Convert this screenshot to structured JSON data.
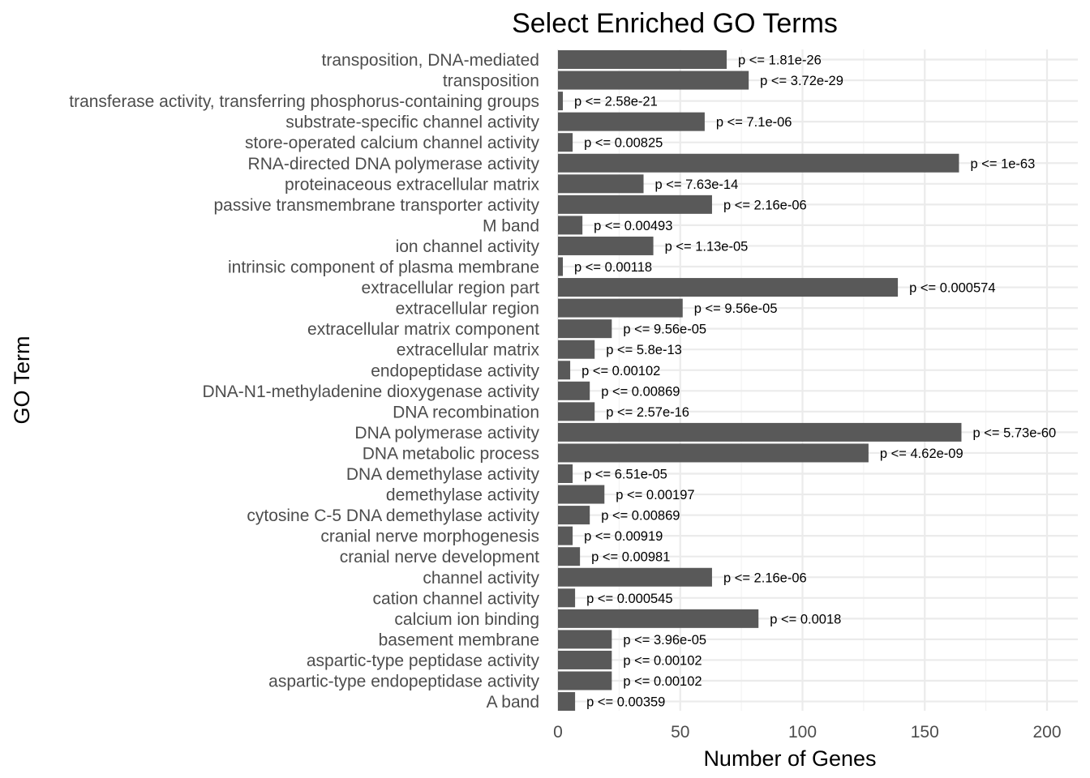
{
  "chart_data": {
    "type": "bar",
    "orientation": "horizontal",
    "title": "Select Enriched GO Terms",
    "xlabel": "Number of Genes",
    "ylabel": "GO Term",
    "xlim": [
      0,
      210
    ],
    "xticks": [
      0,
      50,
      100,
      150,
      200
    ],
    "grid": true,
    "bar_color": "#595959",
    "categories": [
      "transposition, DNA-mediated",
      "transposition",
      "transferase activity, transferring phosphorus-containing groups",
      "substrate-specific channel activity",
      "store-operated calcium channel activity",
      "RNA-directed DNA polymerase activity",
      "proteinaceous extracellular matrix",
      "passive transmembrane transporter activity",
      "M band",
      "ion channel activity",
      "intrinsic component of plasma membrane",
      "extracellular region part",
      "extracellular region",
      "extracellular matrix component",
      "extracellular matrix",
      "endopeptidase activity",
      "DNA-N1-methyladenine dioxygenase activity",
      "DNA recombination",
      "DNA polymerase activity",
      "DNA metabolic process",
      "DNA demethylase activity",
      "demethylase activity",
      "cytosine C-5 DNA demethylase activity",
      "cranial nerve morphogenesis",
      "cranial nerve development",
      "channel activity",
      "cation channel activity",
      "calcium ion binding",
      "basement membrane",
      "aspartic-type peptidase activity",
      "aspartic-type endopeptidase activity",
      "A band"
    ],
    "values": [
      69,
      78,
      2,
      60,
      6,
      164,
      35,
      63,
      10,
      39,
      2,
      139,
      51,
      22,
      15,
      5,
      13,
      15,
      165,
      127,
      6,
      19,
      13,
      6,
      9,
      63,
      7,
      82,
      22,
      22,
      22,
      7
    ],
    "data_labels": [
      "p <= 1.81e-26",
      "p <= 3.72e-29",
      "p <= 2.58e-21",
      "p <= 7.1e-06",
      "p <= 0.00825",
      "p <= 1e-63",
      "p <= 7.63e-14",
      "p <= 2.16e-06",
      "p <= 0.00493",
      "p <= 1.13e-05",
      "p <= 0.00118",
      "p <= 0.000574",
      "p <= 9.56e-05",
      "p <= 9.56e-05",
      "p <= 5.8e-13",
      "p <= 0.00102",
      "p <= 0.00869",
      "p <= 2.57e-16",
      "p <= 5.73e-60",
      "p <= 4.62e-09",
      "p <= 6.51e-05",
      "p <= 0.00197",
      "p <= 0.00869",
      "p <= 0.00919",
      "p <= 0.00981",
      "p <= 2.16e-06",
      "p <= 0.000545",
      "p <= 0.0018",
      "p <= 3.96e-05",
      "p <= 0.00102",
      "p <= 0.00102",
      "p <= 0.00359"
    ]
  }
}
